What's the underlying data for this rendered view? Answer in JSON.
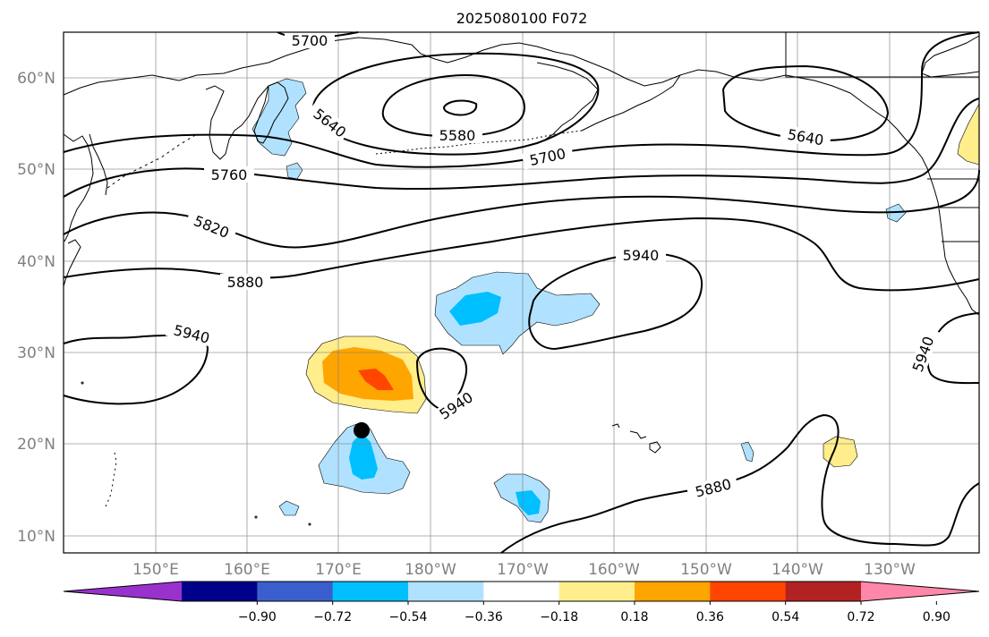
{
  "title": "2025080100 F072",
  "latitude_labels": [
    "10°N",
    "20°N",
    "30°N",
    "40°N",
    "50°N",
    "60°N"
  ],
  "longitude_labels": [
    "150°E",
    "160°E",
    "170°E",
    "180°W",
    "170°W",
    "160°W",
    "150°W",
    "140°W",
    "130°W"
  ],
  "contour_labels": [
    "5700",
    "5640",
    "5580",
    "5700",
    "5640",
    "5760",
    "5820",
    "5880",
    "5940",
    "5940",
    "5940",
    "5880",
    "5940"
  ],
  "colorbar": {
    "ticks": [
      "−0.90",
      "−0.72",
      "−0.54",
      "−0.36",
      "−0.18",
      "0.18",
      "0.36",
      "0.54",
      "0.72",
      "0.90"
    ],
    "colors": [
      "#9932CC",
      "#00008B",
      "#3A5FCD",
      "#00BFFF",
      "#B0E2FF",
      "#FFFFFF",
      "#FFEE8B",
      "#FFA500",
      "#FF4500",
      "#B22222",
      "#FF88AA"
    ]
  },
  "map": {
    "land_outline": "#000000",
    "grid_color": "#808080",
    "marker": "typhoon position near 21.5°N 172.5°E"
  }
}
